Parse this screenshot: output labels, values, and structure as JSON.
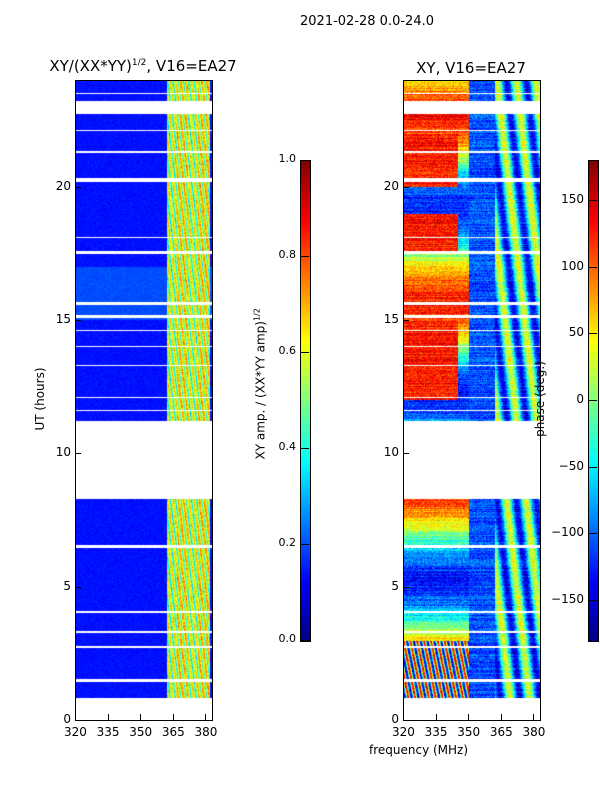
{
  "suptitle": "2021-02-28 0.0-24.0",
  "chart_data": [
    {
      "type": "heatmap",
      "title": "XY/(XX*YY)",
      "title_sup": "1/2",
      "title_suffix": ", V16=EA27",
      "xlabel": "",
      "ylabel": "UT (hours)",
      "xlim": [
        320,
        383
      ],
      "ylim": [
        0,
        24
      ],
      "xticks": [
        "320",
        "335",
        "350",
        "365",
        "380"
      ],
      "yticks": [
        "0",
        "5",
        "10",
        "15",
        "20"
      ],
      "colorbar": {
        "label": "XY amp. / (XX*YY amp)",
        "label_sup": "1/2",
        "range": [
          0,
          1
        ],
        "ticks": [
          "0.0",
          "0.2",
          "0.4",
          "0.6",
          "0.8",
          "1.0"
        ],
        "colormap": "jet"
      },
      "flagged_time_ranges": [
        [
          0,
          0.86
        ],
        [
          1.45,
          1.55
        ],
        [
          2.7,
          2.8
        ],
        [
          3.3,
          3.35
        ],
        [
          4.05,
          4.1
        ],
        [
          6.45,
          6.6
        ],
        [
          8.3,
          11.25
        ],
        [
          11.6,
          11.65
        ],
        [
          12.1,
          12.15
        ],
        [
          13.3,
          13.35
        ],
        [
          14.0,
          14.05
        ],
        [
          14.6,
          14.65
        ],
        [
          15.1,
          15.2
        ],
        [
          15.6,
          15.7
        ],
        [
          17.5,
          17.6
        ],
        [
          18.1,
          18.15
        ],
        [
          20.2,
          20.35
        ],
        [
          21.3,
          21.35
        ],
        [
          22.1,
          22.15
        ],
        [
          22.76,
          23.25
        ],
        [
          23.5,
          23.55
        ]
      ],
      "signal_band_MHz": [
        362,
        382
      ],
      "background_level": 0.12,
      "signal_level": 0.55
    },
    {
      "type": "heatmap",
      "title": "XY, V16=EA27",
      "xlabel": "frequency (MHz)",
      "ylabel": "",
      "xlim": [
        320,
        383
      ],
      "ylim": [
        0,
        24
      ],
      "xticks": [
        "320",
        "335",
        "350",
        "365",
        "380"
      ],
      "yticks": [
        "0",
        "5",
        "10",
        "15",
        "20"
      ],
      "colorbar": {
        "label": "phase (deg.)",
        "range": [
          -180,
          180
        ],
        "ticks": [
          "−150",
          "−100",
          "−50",
          "0",
          "50",
          "100",
          "150"
        ],
        "colormap": "jet"
      }
    }
  ]
}
